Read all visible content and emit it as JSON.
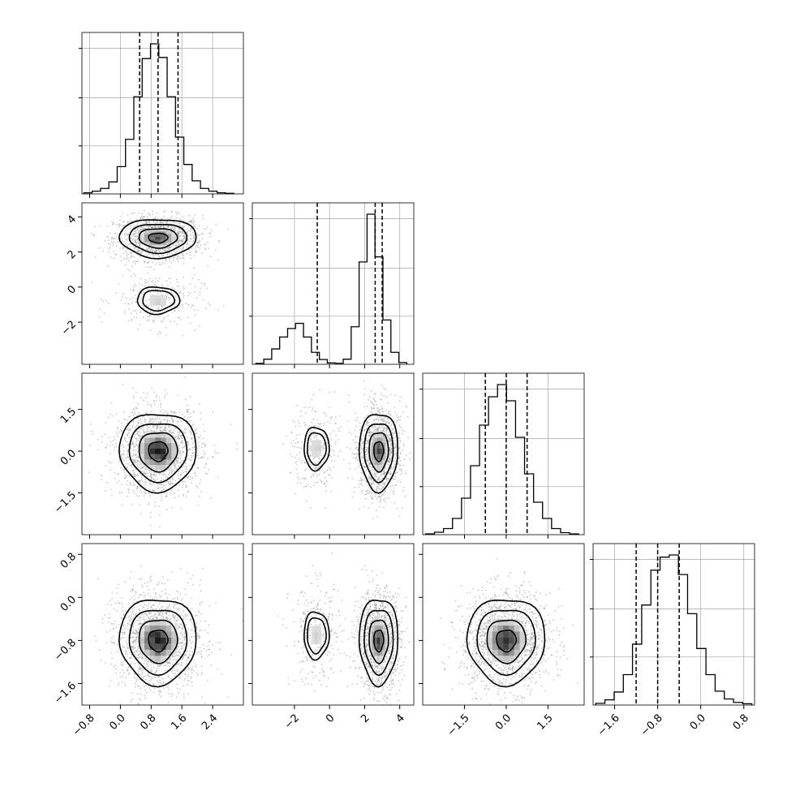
{
  "chart_data": {
    "type": "corner",
    "n_params": 4,
    "params": [
      {
        "index": 0,
        "quantiles": [
          0.5,
          0.98,
          1.5
        ],
        "range": [
          -1.0,
          3.2
        ],
        "ticks": [
          "-0.8",
          "0.0",
          "0.8",
          "1.6",
          "2.4"
        ]
      },
      {
        "index": 1,
        "quantiles": [
          -0.7,
          2.6,
          3.0
        ],
        "range": [
          -4.4,
          4.8
        ],
        "ticks": [
          "-2",
          "0",
          "2",
          "4"
        ]
      },
      {
        "index": 2,
        "quantiles": [
          -0.75,
          0.0,
          0.75
        ],
        "range": [
          -3.0,
          2.8
        ],
        "ticks": [
          "-1.5",
          "0.0",
          "1.5"
        ]
      },
      {
        "index": 3,
        "quantiles": [
          -1.2,
          -0.8,
          -0.4
        ],
        "range": [
          -2.0,
          1.0
        ],
        "ticks": [
          "-1.6",
          "-0.8",
          "0.0",
          "0.8"
        ]
      }
    ],
    "tick_values": [
      [
        -0.8,
        0.0,
        0.8,
        1.6,
        2.4
      ],
      [
        -2,
        0,
        2,
        4
      ],
      [
        -1.5,
        0.0,
        1.5
      ],
      [
        -1.6,
        -0.8,
        0.0,
        0.8
      ]
    ],
    "marginal_histograms": [
      {
        "param": 0,
        "bin_edges_range": [
          -0.95,
          2.95
        ],
        "counts": [
          2,
          5,
          10,
          22,
          50,
          100,
          178,
          248,
          275,
          250,
          178,
          104,
          54,
          24,
          10,
          5,
          2,
          1
        ]
      },
      {
        "param": 1,
        "bin_edges_range": [
          -4.2,
          4.4
        ],
        "counts": [
          5,
          30,
          90,
          160,
          210,
          240,
          160,
          70,
          28,
          8,
          6,
          30,
          220,
          600,
          880,
          630,
          260,
          70,
          10
        ]
      },
      {
        "param": 2,
        "bin_edges_range": [
          -2.9,
          2.6
        ],
        "counts": [
          2,
          6,
          15,
          40,
          90,
          170,
          270,
          340,
          370,
          330,
          240,
          150,
          80,
          40,
          15,
          5,
          2
        ]
      },
      {
        "param": 3,
        "bin_edges_range": [
          -1.95,
          0.95
        ],
        "counts": [
          4,
          12,
          30,
          70,
          140,
          230,
          310,
          340,
          345,
          300,
          210,
          130,
          70,
          32,
          14,
          6,
          3
        ]
      }
    ],
    "joint_distributions": [
      {
        "x_param": 0,
        "y_param": 1,
        "modes": [
          {
            "x": 0.98,
            "y": 2.8,
            "sx": 0.5,
            "sy": 0.55,
            "weight": 0.8
          },
          {
            "x": 0.98,
            "y": -0.75,
            "sx": 0.5,
            "sy": 0.7,
            "weight": 0.2
          }
        ]
      },
      {
        "x_param": 0,
        "y_param": 2,
        "modes": [
          {
            "x": 0.98,
            "y": 0.0,
            "sx": 0.5,
            "sy": 0.7,
            "weight": 1.0
          }
        ]
      },
      {
        "x_param": 1,
        "y_param": 2,
        "modes": [
          {
            "x": 2.8,
            "y": 0.0,
            "sx": 0.55,
            "sy": 0.7,
            "weight": 0.8
          },
          {
            "x": -0.75,
            "y": 0.1,
            "sx": 0.65,
            "sy": 0.7,
            "weight": 0.2
          }
        ]
      },
      {
        "x_param": 0,
        "y_param": 3,
        "modes": [
          {
            "x": 0.98,
            "y": -0.8,
            "sx": 0.5,
            "sy": 0.4,
            "weight": 1.0
          }
        ]
      },
      {
        "x_param": 1,
        "y_param": 3,
        "modes": [
          {
            "x": 2.8,
            "y": -0.8,
            "sx": 0.55,
            "sy": 0.4,
            "weight": 0.8
          },
          {
            "x": -0.75,
            "y": -0.7,
            "sx": 0.65,
            "sy": 0.4,
            "weight": 0.2
          }
        ]
      },
      {
        "x_param": 2,
        "y_param": 3,
        "modes": [
          {
            "x": 0.0,
            "y": -0.8,
            "sx": 0.7,
            "sy": 0.4,
            "weight": 1.0
          }
        ]
      }
    ],
    "contour_levels_sigma": [
      0.5,
      1.0,
      1.5,
      2.0
    ],
    "grid": true,
    "colors": {
      "hist_line": "#000000",
      "contour": "#000000",
      "scatter": "#9a9a9a",
      "density_dark": "#000000",
      "grid": "#b0b0b0"
    }
  }
}
